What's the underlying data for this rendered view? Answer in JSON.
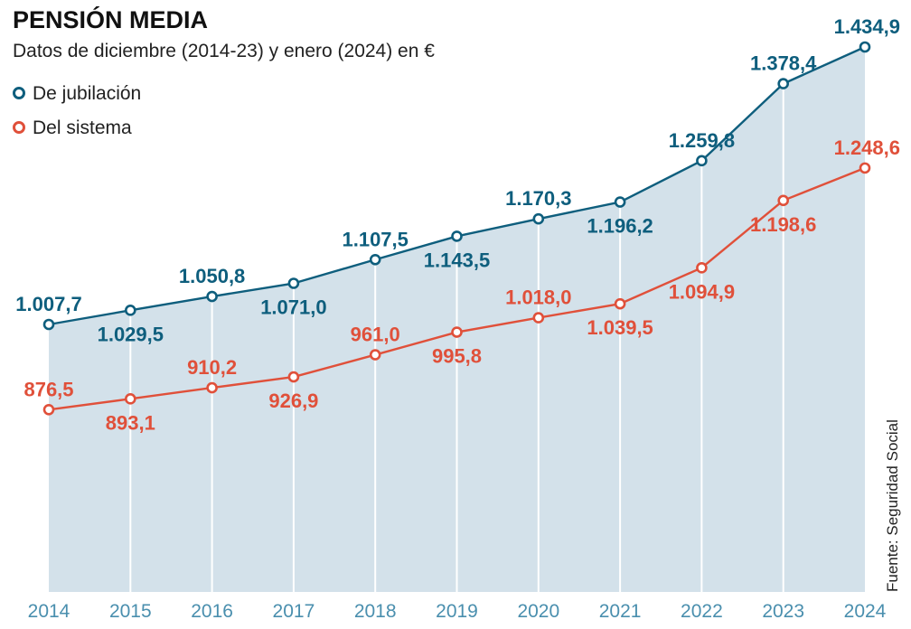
{
  "chart_data": {
    "type": "line",
    "title": "PENSIÓN MEDIA",
    "subtitle": "Datos de diciembre (2014-23) y enero (2024) en €",
    "categories": [
      "2014",
      "2015",
      "2016",
      "2017",
      "2018",
      "2019",
      "2020",
      "2021",
      "2022",
      "2023",
      "2024"
    ],
    "series": [
      {
        "name": "De jubilación",
        "color": "#0e5e7d",
        "values": [
          1007.7,
          1029.5,
          1050.8,
          1071.0,
          1107.5,
          1143.5,
          1170.3,
          1196.2,
          1259.8,
          1378.4,
          1434.9
        ],
        "labels": [
          "1.007,7",
          "1.029,5",
          "1.050,8",
          "1.071,0",
          "1.107,5",
          "1.143,5",
          "1.170,3",
          "1.196,2",
          "1.259,8",
          "1.378,4",
          "1.434,9"
        ]
      },
      {
        "name": "Del sistema",
        "color": "#e0503a",
        "values": [
          876.5,
          893.1,
          910.2,
          926.9,
          961.0,
          995.8,
          1018.0,
          1039.5,
          1094.9,
          1198.6,
          1248.6
        ],
        "labels": [
          "876,5",
          "893,1",
          "910,2",
          "926,9",
          "961,0",
          "995,8",
          "1.018,0",
          "1.039,5",
          "1.094,9",
          "1.198,6",
          "1.248,6"
        ]
      }
    ],
    "area_fill": "#d3e1ea",
    "tick_color": "#4a8fae",
    "legend_position": "top-left",
    "source": "Fuente: Seguridad Social"
  }
}
